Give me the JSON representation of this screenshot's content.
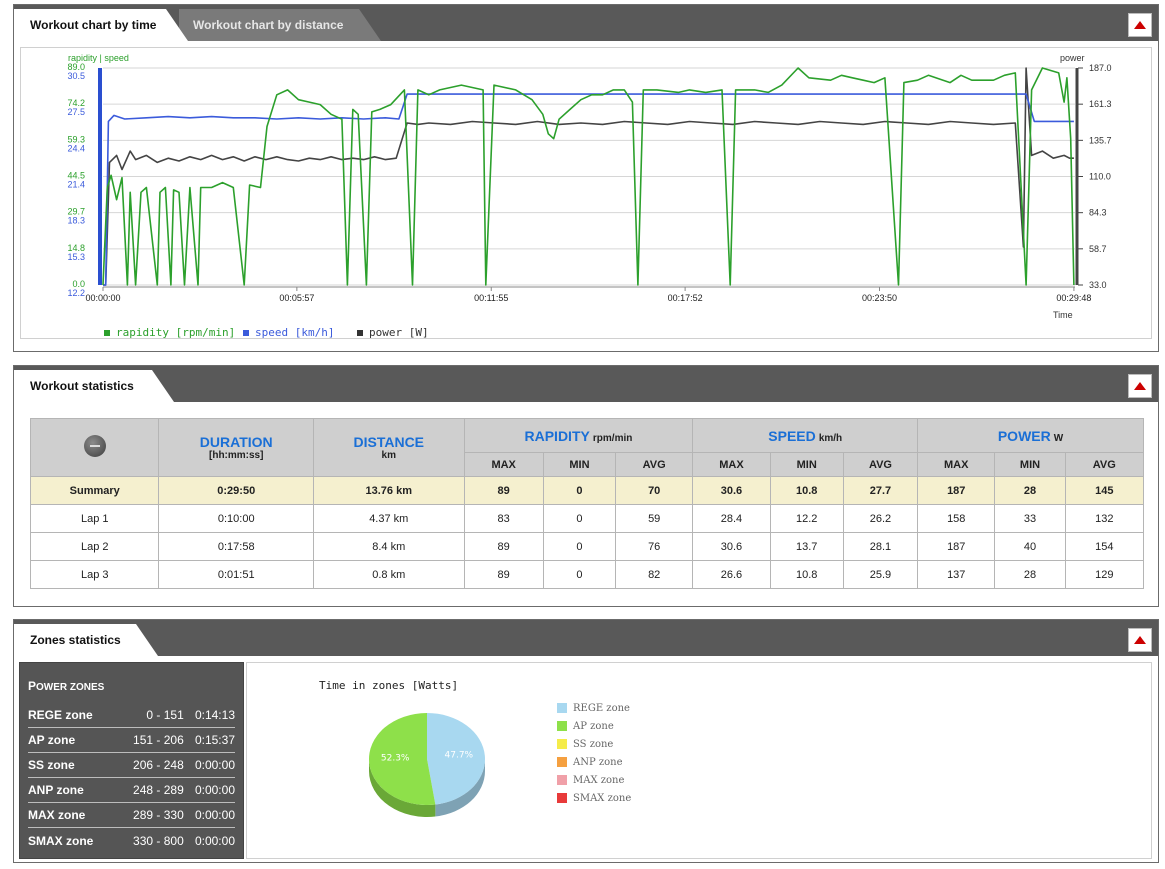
{
  "workout_chart": {
    "tab_time": "Workout chart by time",
    "tab_distance": "Workout chart by distance",
    "left_axis_title": "rapidity | speed",
    "right_axis_title": "power",
    "x_axis_title": "Time",
    "legend": [
      {
        "label": "rapidity [rpm/min]",
        "color": "#2ca02c"
      },
      {
        "label": "speed [km/h]",
        "color": "#3b5bdb"
      },
      {
        "label": "power  [W]",
        "color": "#444444"
      }
    ]
  },
  "chart_data": {
    "type": "line",
    "x_ticks": [
      "00:00:00",
      "00:05:57",
      "00:11:55",
      "00:17:52",
      "00:23:50",
      "00:29:48"
    ],
    "x_tick_seconds": [
      0,
      357,
      715,
      1072,
      1430,
      1788
    ],
    "xlim_seconds": [
      0,
      1790
    ],
    "y_ticks_rapidity": [
      "89.0",
      "74.2",
      "59.3",
      "44.5",
      "29.7",
      "14.8",
      "0.0"
    ],
    "y_ticks_speed": [
      "30.5",
      "27.5",
      "24.4",
      "21.4",
      "18.3",
      "15.3",
      "12.2"
    ],
    "y_ticks_power": [
      "187.0",
      "161.3",
      "135.7",
      "110.0",
      "84.3",
      "58.7",
      "33.0"
    ],
    "ylim_rapidity": [
      0,
      89
    ],
    "ylim_speed": [
      12.2,
      30.5
    ],
    "ylim_power": [
      33,
      187
    ],
    "series": [
      {
        "name": "rapidity [rpm/min]",
        "color": "#2ca02c",
        "axis": "rapidity",
        "points": [
          [
            0,
            0
          ],
          [
            8,
            40
          ],
          [
            15,
            45
          ],
          [
            25,
            35
          ],
          [
            35,
            44
          ],
          [
            45,
            0
          ],
          [
            50,
            38
          ],
          [
            60,
            0
          ],
          [
            70,
            38
          ],
          [
            80,
            40
          ],
          [
            100,
            0
          ],
          [
            105,
            38
          ],
          [
            115,
            40
          ],
          [
            125,
            0
          ],
          [
            130,
            39
          ],
          [
            140,
            38
          ],
          [
            150,
            0
          ],
          [
            160,
            40
          ],
          [
            175,
            0
          ],
          [
            180,
            40
          ],
          [
            200,
            40
          ],
          [
            220,
            42
          ],
          [
            240,
            40
          ],
          [
            260,
            0
          ],
          [
            270,
            41
          ],
          [
            290,
            40
          ],
          [
            302,
            65
          ],
          [
            320,
            78
          ],
          [
            340,
            80
          ],
          [
            360,
            76
          ],
          [
            380,
            75
          ],
          [
            400,
            74
          ],
          [
            420,
            70
          ],
          [
            440,
            68
          ],
          [
            450,
            0
          ],
          [
            460,
            72
          ],
          [
            470,
            70
          ],
          [
            485,
            0
          ],
          [
            495,
            71
          ],
          [
            510,
            72
          ],
          [
            530,
            74
          ],
          [
            555,
            80
          ],
          [
            570,
            0
          ],
          [
            580,
            80
          ],
          [
            600,
            78
          ],
          [
            620,
            80
          ],
          [
            640,
            81
          ],
          [
            660,
            82
          ],
          [
            700,
            80
          ],
          [
            705,
            0
          ],
          [
            720,
            82
          ],
          [
            760,
            80
          ],
          [
            790,
            76
          ],
          [
            810,
            70
          ],
          [
            820,
            62
          ],
          [
            830,
            60
          ],
          [
            840,
            68
          ],
          [
            860,
            72
          ],
          [
            880,
            76
          ],
          [
            900,
            78
          ],
          [
            920,
            78
          ],
          [
            940,
            80
          ],
          [
            960,
            80
          ],
          [
            975,
            75
          ],
          [
            985,
            0
          ],
          [
            995,
            80
          ],
          [
            1020,
            80
          ],
          [
            1060,
            79
          ],
          [
            1080,
            80
          ],
          [
            1110,
            79
          ],
          [
            1140,
            80
          ],
          [
            1155,
            0
          ],
          [
            1165,
            80
          ],
          [
            1200,
            80
          ],
          [
            1225,
            79
          ],
          [
            1250,
            82
          ],
          [
            1280,
            89
          ],
          [
            1300,
            85
          ],
          [
            1340,
            84
          ],
          [
            1360,
            86
          ],
          [
            1380,
            85
          ],
          [
            1400,
            84
          ],
          [
            1420,
            83
          ],
          [
            1440,
            85
          ],
          [
            1465,
            0
          ],
          [
            1475,
            83
          ],
          [
            1500,
            84
          ],
          [
            1520,
            86
          ],
          [
            1560,
            83
          ],
          [
            1580,
            86
          ],
          [
            1600,
            84
          ],
          [
            1640,
            84
          ],
          [
            1660,
            86
          ],
          [
            1680,
            87
          ],
          [
            1700,
            0
          ],
          [
            1710,
            80
          ],
          [
            1730,
            89
          ],
          [
            1760,
            87
          ],
          [
            1770,
            75
          ],
          [
            1775,
            85
          ],
          [
            1782,
            60
          ],
          [
            1788,
            0
          ]
        ]
      },
      {
        "name": "speed [km/h]",
        "color": "#3b5bdb",
        "axis": "speed",
        "points": [
          [
            0,
            12.2
          ],
          [
            5,
            12.2
          ],
          [
            10,
            26.0
          ],
          [
            20,
            26.5
          ],
          [
            40,
            26.2
          ],
          [
            80,
            26.3
          ],
          [
            120,
            26.4
          ],
          [
            160,
            26.3
          ],
          [
            200,
            26.4
          ],
          [
            240,
            26.3
          ],
          [
            280,
            26.3
          ],
          [
            320,
            26.2
          ],
          [
            360,
            26.3
          ],
          [
            400,
            26.2
          ],
          [
            440,
            26.3
          ],
          [
            480,
            26.2
          ],
          [
            520,
            26.3
          ],
          [
            545,
            26.2
          ],
          [
            560,
            28.3
          ],
          [
            620,
            28.3
          ],
          [
            680,
            28.3
          ],
          [
            740,
            28.3
          ],
          [
            800,
            28.3
          ],
          [
            860,
            28.3
          ],
          [
            920,
            28.3
          ],
          [
            980,
            28.3
          ],
          [
            1040,
            28.3
          ],
          [
            1100,
            28.3
          ],
          [
            1160,
            28.3
          ],
          [
            1220,
            28.3
          ],
          [
            1280,
            28.3
          ],
          [
            1340,
            28.3
          ],
          [
            1400,
            28.3
          ],
          [
            1460,
            28.3
          ],
          [
            1520,
            28.3
          ],
          [
            1580,
            28.3
          ],
          [
            1640,
            28.3
          ],
          [
            1700,
            28.3
          ],
          [
            1715,
            26.0
          ],
          [
            1740,
            26.0
          ],
          [
            1770,
            26.0
          ],
          [
            1788,
            26.0
          ]
        ]
      },
      {
        "name": "power  [W]",
        "color": "#444444",
        "axis": "power",
        "points": [
          [
            0,
            33
          ],
          [
            5,
            33
          ],
          [
            12,
            120
          ],
          [
            25,
            125
          ],
          [
            35,
            115
          ],
          [
            50,
            128
          ],
          [
            60,
            122
          ],
          [
            80,
            125
          ],
          [
            100,
            120
          ],
          [
            120,
            123
          ],
          [
            140,
            121
          ],
          [
            160,
            124
          ],
          [
            180,
            122
          ],
          [
            200,
            125
          ],
          [
            220,
            122
          ],
          [
            240,
            124
          ],
          [
            260,
            121
          ],
          [
            280,
            124
          ],
          [
            300,
            122
          ],
          [
            320,
            124
          ],
          [
            340,
            122
          ],
          [
            360,
            121
          ],
          [
            380,
            123
          ],
          [
            400,
            122
          ],
          [
            420,
            124
          ],
          [
            440,
            122
          ],
          [
            460,
            123
          ],
          [
            480,
            122
          ],
          [
            500,
            124
          ],
          [
            520,
            122
          ],
          [
            540,
            123
          ],
          [
            560,
            148
          ],
          [
            580,
            147
          ],
          [
            600,
            148
          ],
          [
            640,
            147
          ],
          [
            680,
            149
          ],
          [
            720,
            148
          ],
          [
            760,
            147
          ],
          [
            800,
            149
          ],
          [
            840,
            147
          ],
          [
            880,
            148
          ],
          [
            920,
            147
          ],
          [
            960,
            149
          ],
          [
            1000,
            148
          ],
          [
            1040,
            147
          ],
          [
            1080,
            149
          ],
          [
            1120,
            148
          ],
          [
            1160,
            147
          ],
          [
            1200,
            149
          ],
          [
            1240,
            148
          ],
          [
            1280,
            147
          ],
          [
            1320,
            149
          ],
          [
            1360,
            148
          ],
          [
            1400,
            147
          ],
          [
            1440,
            149
          ],
          [
            1480,
            148
          ],
          [
            1520,
            147
          ],
          [
            1560,
            149
          ],
          [
            1600,
            148
          ],
          [
            1640,
            147
          ],
          [
            1680,
            148
          ],
          [
            1695,
            60
          ],
          [
            1700,
            187
          ],
          [
            1710,
            125
          ],
          [
            1730,
            128
          ],
          [
            1750,
            123
          ],
          [
            1770,
            125
          ],
          [
            1780,
            123
          ],
          [
            1788,
            123
          ]
        ]
      }
    ]
  },
  "workout_stats": {
    "title": "Workout statistics",
    "headers": {
      "duration": "DURATION",
      "duration_unit": "[hh:mm:ss]",
      "distance": "DISTANCE",
      "distance_unit": "km",
      "rapidity": "RAPIDITY",
      "rapidity_unit": "rpm/min",
      "speed": "SPEED",
      "speed_unit": "km/h",
      "power": "POWER",
      "power_unit": "W",
      "max": "MAX",
      "min": "MIN",
      "avg": "AVG"
    },
    "rows": [
      {
        "name": "Summary",
        "duration": "0:29:50",
        "distance": "13.76 km",
        "r_max": "89",
        "r_min": "0",
        "r_avg": "70",
        "s_max": "30.6",
        "s_min": "10.8",
        "s_avg": "27.7",
        "p_max": "187",
        "p_min": "28",
        "p_avg": "145"
      },
      {
        "name": "Lap 1",
        "duration": "0:10:00",
        "distance": "4.37 km",
        "r_max": "83",
        "r_min": "0",
        "r_avg": "59",
        "s_max": "28.4",
        "s_min": "12.2",
        "s_avg": "26.2",
        "p_max": "158",
        "p_min": "33",
        "p_avg": "132"
      },
      {
        "name": "Lap 2",
        "duration": "0:17:58",
        "distance": "8.4 km",
        "r_max": "89",
        "r_min": "0",
        "r_avg": "76",
        "s_max": "30.6",
        "s_min": "13.7",
        "s_avg": "28.1",
        "p_max": "187",
        "p_min": "40",
        "p_avg": "154"
      },
      {
        "name": "Lap 3",
        "duration": "0:01:51",
        "distance": "0.8 km",
        "r_max": "89",
        "r_min": "0",
        "r_avg": "82",
        "s_max": "26.6",
        "s_min": "10.8",
        "s_avg": "25.9",
        "p_max": "137",
        "p_min": "28",
        "p_avg": "129"
      }
    ]
  },
  "zones": {
    "title": "Zones statistics",
    "box_title_first": "P",
    "box_title_rest": "OWER ZONES",
    "rows": [
      {
        "name": "REGE zone",
        "range": "0 - 151",
        "time": "0:14:13"
      },
      {
        "name": "AP zone",
        "range": "151 - 206",
        "time": "0:15:37"
      },
      {
        "name": "SS zone",
        "range": "206 - 248",
        "time": "0:00:00"
      },
      {
        "name": "ANP zone",
        "range": "248 - 289",
        "time": "0:00:00"
      },
      {
        "name": "MAX zone",
        "range": "289 - 330",
        "time": "0:00:00"
      },
      {
        "name": "SMAX zone",
        "range": "330 - 800",
        "time": "0:00:00"
      }
    ],
    "pie_title": "Time in zones [Watts]",
    "pie": [
      {
        "name": "REGE zone",
        "value": 47.7,
        "label": "47.7%",
        "color": "#a8d8f0"
      },
      {
        "name": "AP zone",
        "value": 52.3,
        "label": "52.3%",
        "color": "#8ee04a"
      }
    ],
    "pie_legend": [
      {
        "label": "REGE zone",
        "color": "#a8d8f0"
      },
      {
        "label": "AP zone",
        "color": "#8ee04a"
      },
      {
        "label": "SS zone",
        "color": "#f5ec4a"
      },
      {
        "label": "ANP zone",
        "color": "#f5a040"
      },
      {
        "label": "MAX zone",
        "color": "#f0a0a8"
      },
      {
        "label": "SMAX zone",
        "color": "#e83a3a"
      }
    ]
  }
}
